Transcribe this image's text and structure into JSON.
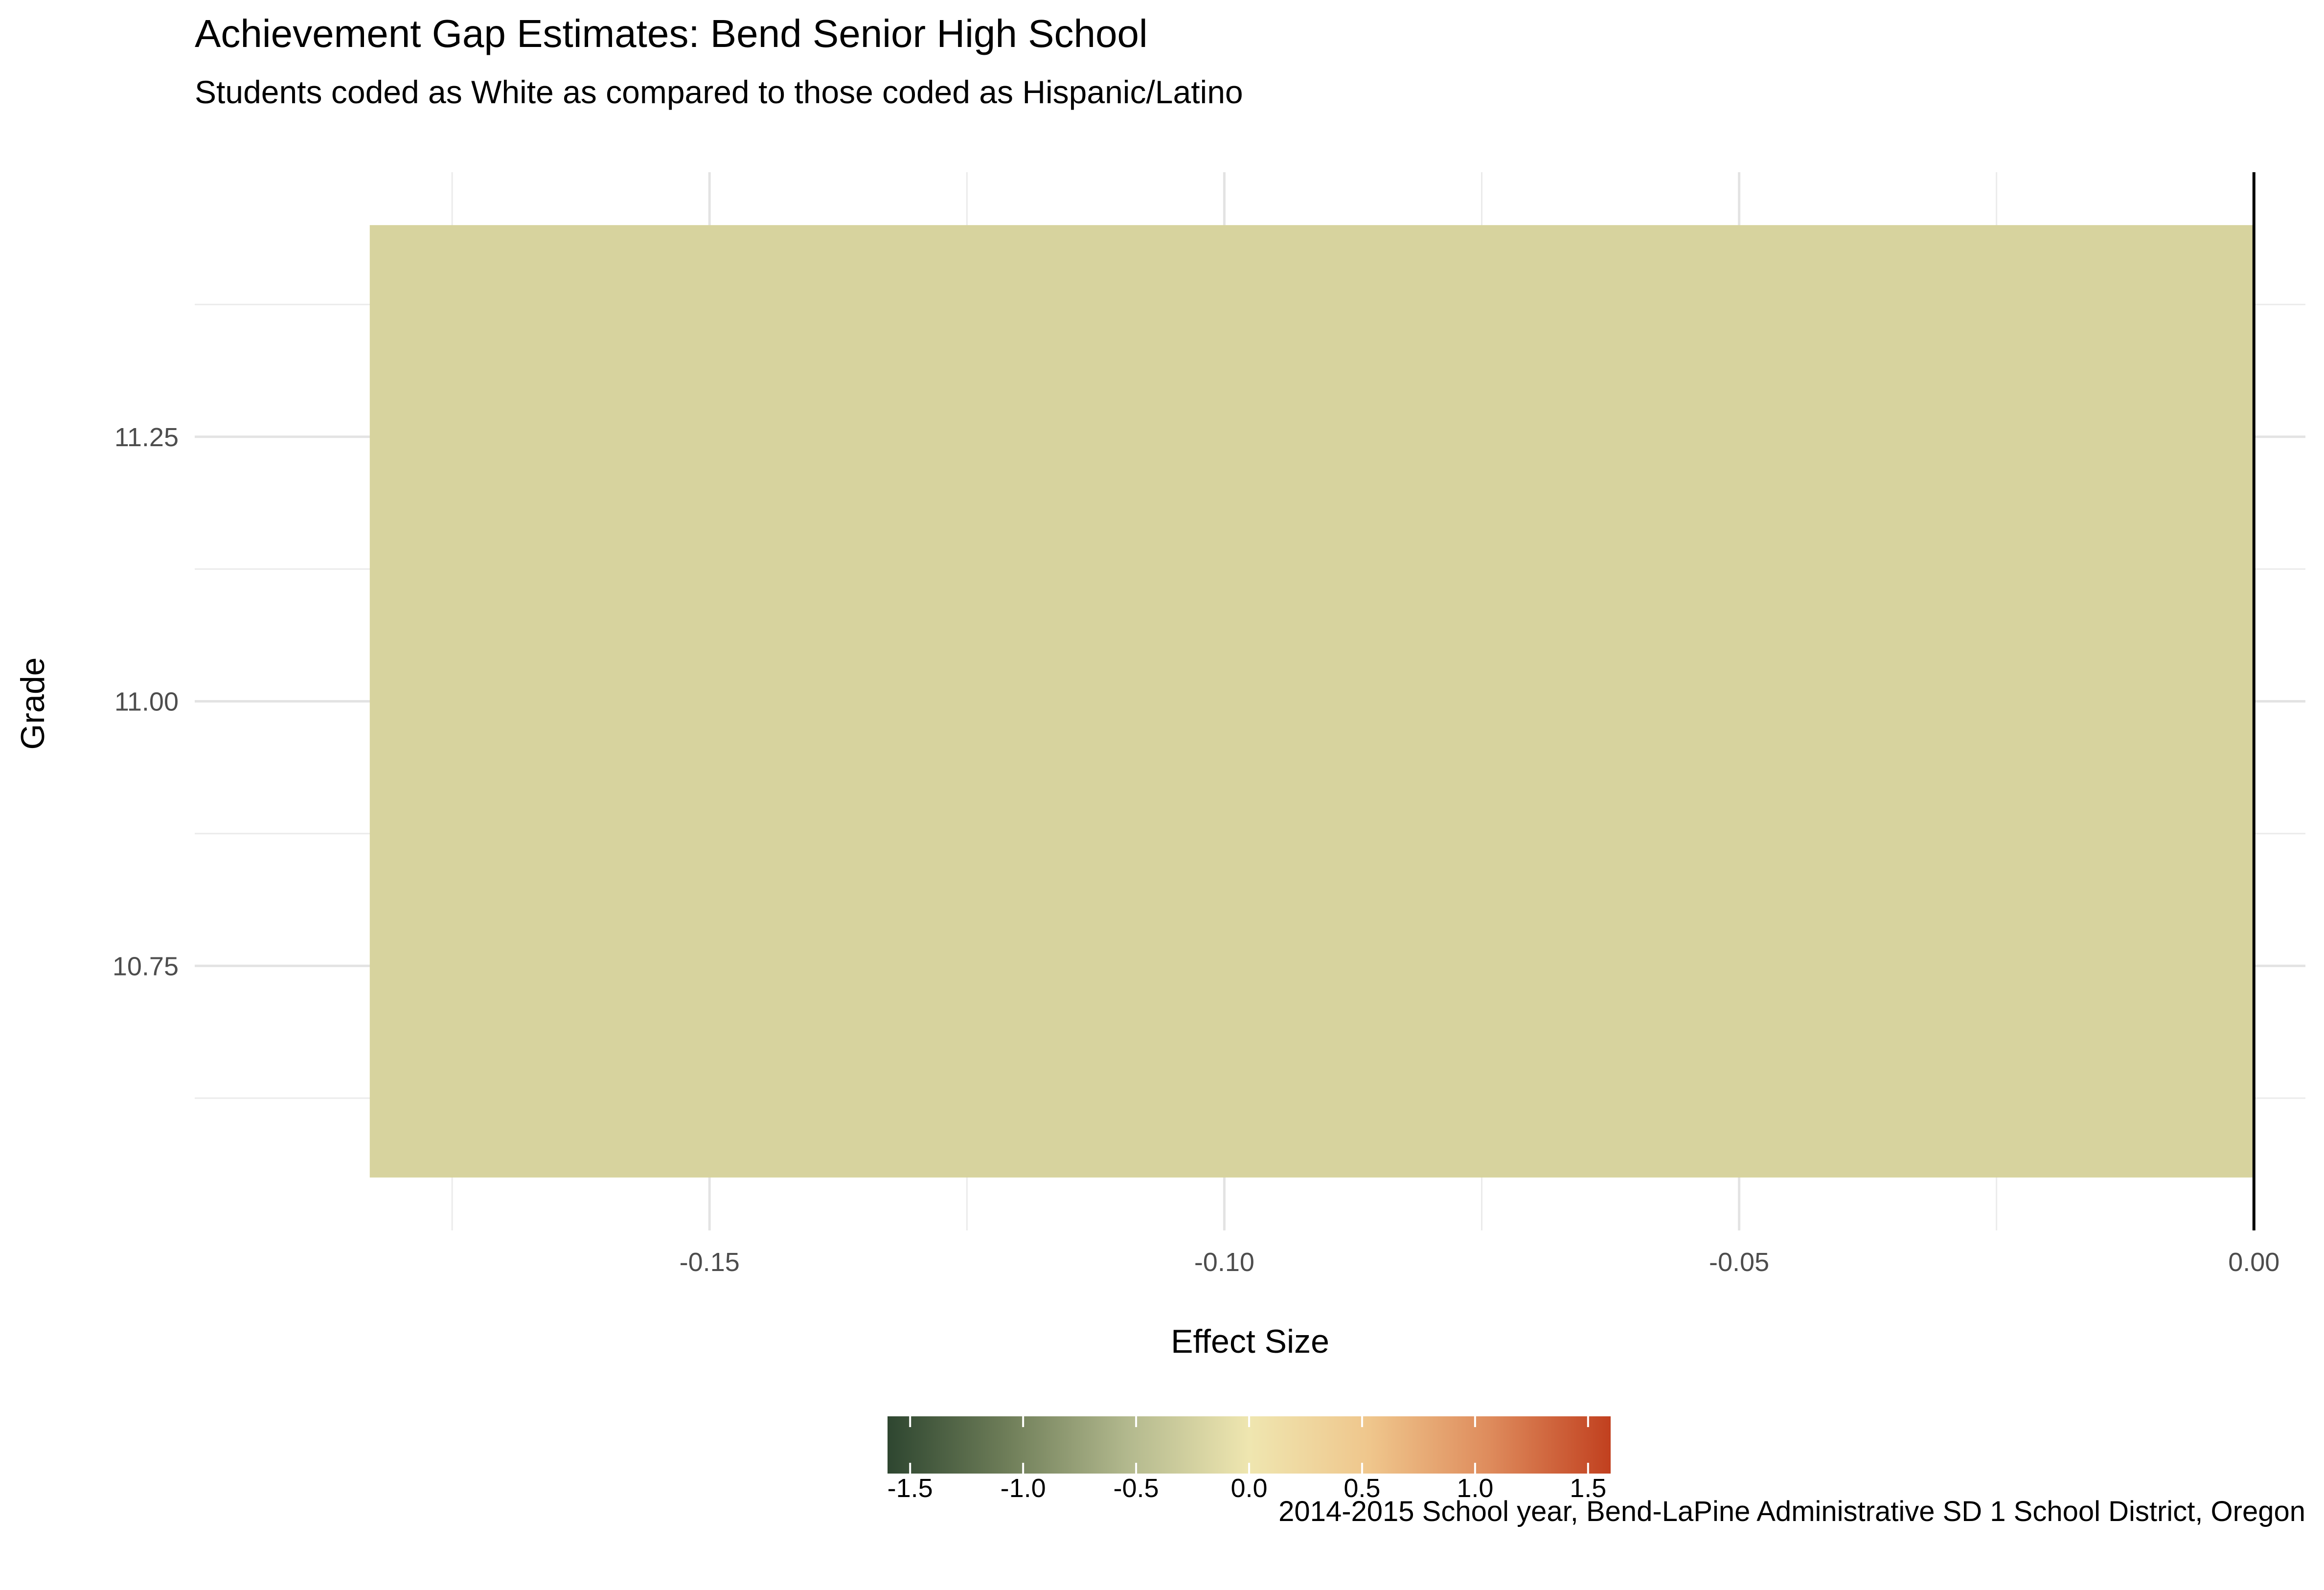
{
  "chart_data": {
    "type": "bar",
    "orientation": "horizontal",
    "title": "Achievement Gap Estimates: Bend Senior High School",
    "subtitle": "Students coded as White as compared to those coded as Hispanic/Latino",
    "xlabel": "Effect Size",
    "ylabel": "Grade",
    "caption": "2014-2015 School year, Bend-LaPine Administrative SD 1 School District, Oregon",
    "categories": [
      "11"
    ],
    "values": [
      -0.183
    ],
    "bar_y_range": [
      10.55,
      11.45
    ],
    "bar_color": "#D7D39E",
    "xlim": [
      -0.2,
      0.005
    ],
    "ylim": [
      10.5,
      11.5
    ],
    "x_ticks": [
      -0.15,
      -0.1,
      -0.05,
      0.0
    ],
    "x_tick_labels": [
      "-0.15",
      "-0.10",
      "-0.05",
      "0.00"
    ],
    "x_minor_ticks": [
      -0.175,
      -0.125,
      -0.075,
      -0.025
    ],
    "y_ticks": [
      10.75,
      11.0,
      11.25
    ],
    "y_tick_labels": [
      "10.75",
      "11.00",
      "11.25"
    ],
    "y_minor_ticks": [
      10.625,
      10.875,
      11.125,
      11.375
    ],
    "reference_line_x": 0,
    "grid": true,
    "legend": {
      "type": "colorbar",
      "position": "bottom",
      "range": [
        -1.6,
        1.6
      ],
      "ticks": [
        -1.5,
        -1.0,
        -0.5,
        0.0,
        0.5,
        1.0,
        1.5
      ],
      "tick_labels": [
        "-1.5",
        "-1.0",
        "-0.5",
        "0.0",
        "0.5",
        "1.0",
        "1.5"
      ],
      "colors": [
        "#2E4630",
        "#6F7E59",
        "#B3B98E",
        "#EFE6B0",
        "#EFC68C",
        "#DE8B5C",
        "#C1401F"
      ]
    }
  }
}
